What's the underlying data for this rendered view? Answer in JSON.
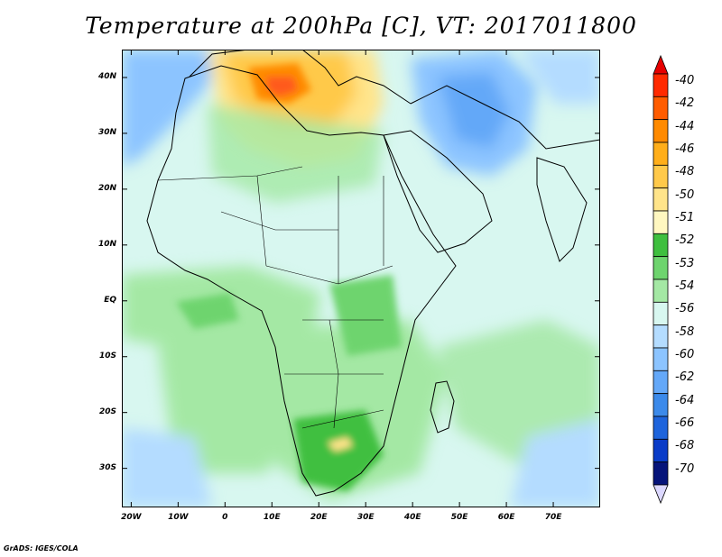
{
  "title": "Temperature at 200hPa [C], VT: 2017011800",
  "footer": "GrADS: IGES/COLA",
  "axes": {
    "x_ticks": [
      "20W",
      "10W",
      "0",
      "10E",
      "20E",
      "30E",
      "40E",
      "50E",
      "60E",
      "70E"
    ],
    "x_tick_lons": [
      -20,
      -10,
      0,
      10,
      20,
      30,
      40,
      50,
      60,
      70
    ],
    "y_ticks": [
      "40N",
      "30N",
      "20N",
      "10N",
      "EQ",
      "10S",
      "20S",
      "30S"
    ],
    "y_tick_lats": [
      40,
      30,
      20,
      10,
      0,
      -10,
      -20,
      -30
    ],
    "lon_range": [
      -22,
      80
    ],
    "lat_range": [
      -37,
      45
    ]
  },
  "colorbar": {
    "labels": [
      "-40",
      "-42",
      "-44",
      "-46",
      "-48",
      "-50",
      "-51",
      "-52",
      "-53",
      "-54",
      "-56",
      "-58",
      "-60",
      "-62",
      "-64",
      "-66",
      "-68",
      "-70"
    ],
    "colors": [
      "#ff2a00",
      "#ff5c00",
      "#ff8a00",
      "#ffae1a",
      "#ffc94a",
      "#ffe48a",
      "#fff7c0",
      "#3fbf3f",
      "#6ed46e",
      "#a4e8a4",
      "#d8f7f0",
      "#b4dcff",
      "#8cc4ff",
      "#64a8f8",
      "#3c8aea",
      "#1e64dc",
      "#0a3cc8",
      "#06147a"
    ],
    "top_arrow_color": "#e60000",
    "bottom_arrow_color": "#dcd8ff"
  },
  "colors": {
    "coastline": "#000000",
    "hot_core": "#ff5a1e",
    "warm": "#ffb43c",
    "land_green": "#6ed46e",
    "ocean_blue": "#8cc4ff"
  }
}
